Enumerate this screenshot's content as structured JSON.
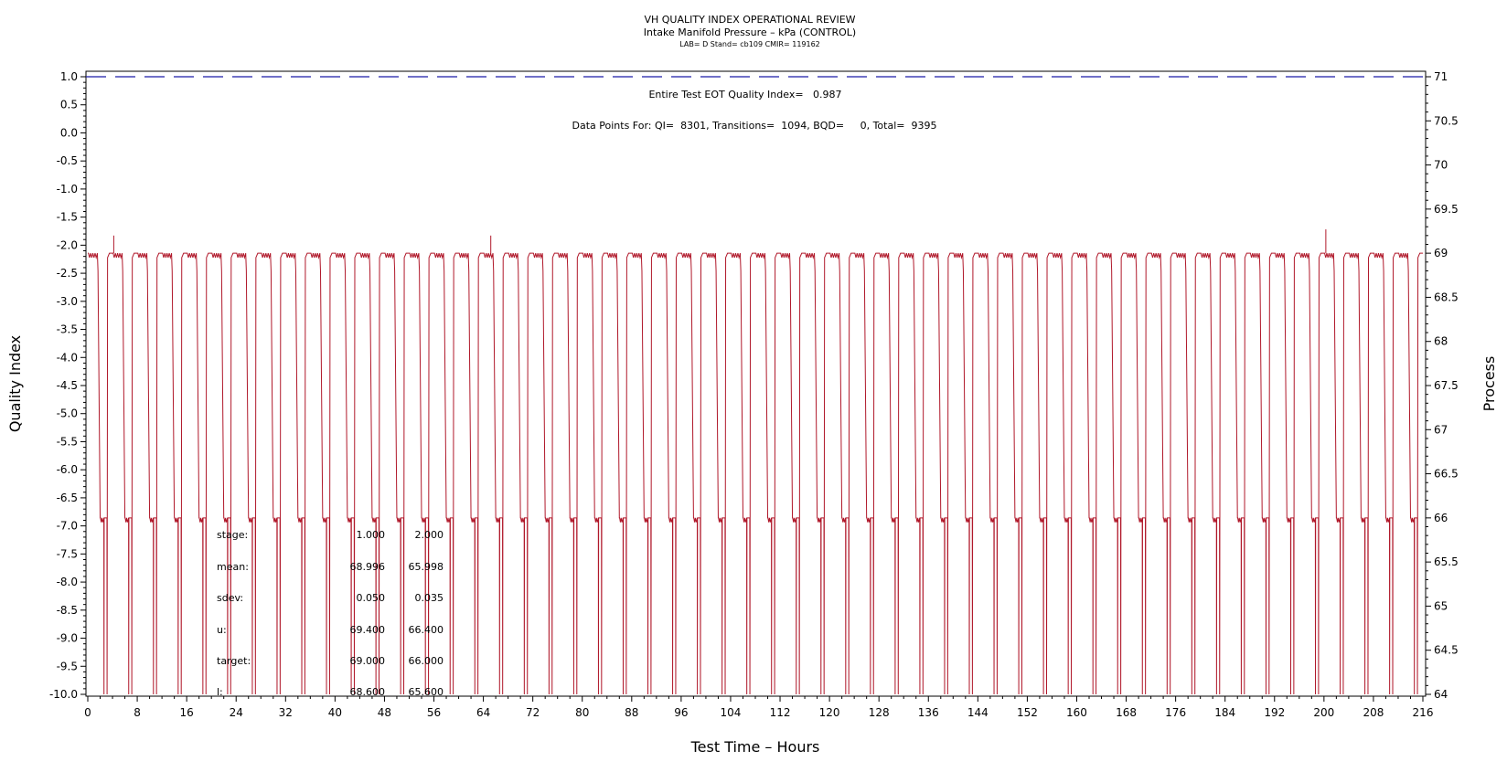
{
  "chart_data": {
    "type": "line",
    "title": "VH QUALITY INDEX OPERATIONAL REVIEW",
    "subtitle": "Intake Manifold Pressure – kPa (CONTROL)",
    "subtitle2": "LAB= D Stand= cb109 CMIR= 119162",
    "xlabel": "Test Time – Hours",
    "ylabel": "Quality Index",
    "y2label": "Process",
    "xlim": [
      0,
      216
    ],
    "ylim": [
      -10.0,
      1.0
    ],
    "y2lim": [
      64,
      71
    ],
    "x_ticks": [
      "0",
      "8",
      "16",
      "24",
      "32",
      "40",
      "48",
      "56",
      "64",
      "72",
      "80",
      "88",
      "96",
      "104",
      "112",
      "120",
      "128",
      "136",
      "144",
      "152",
      "160",
      "168",
      "176",
      "184",
      "192",
      "200",
      "208",
      "216"
    ],
    "y_ticks": [
      "1.0",
      "0.5",
      "0.0",
      "-0.5",
      "-1.0",
      "-1.5",
      "-2.0",
      "-2.5",
      "-3.0",
      "-3.5",
      "-4.0",
      "-4.5",
      "-5.0",
      "-5.5",
      "-6.0",
      "-6.5",
      "-7.0",
      "-7.5",
      "-8.0",
      "-8.5",
      "-9.0",
      "-9.5",
      "-10.0"
    ],
    "y2_ticks": [
      "71",
      "70.5",
      "70",
      "69.5",
      "69",
      "68.5",
      "68",
      "67.5",
      "67",
      "66.5",
      "66",
      "65.5",
      "65",
      "64.5",
      "64"
    ],
    "reference_line": {
      "y": 1.0,
      "style": "dashed",
      "color": "#1a1aa6"
    },
    "series": [
      {
        "color": "#b0182a",
        "cycle_hours": 4,
        "high_level": 69.0,
        "low_level": 66.0,
        "axis_floor": 64.0,
        "high_value_peaks": [
          69.2,
          69.2,
          69.27
        ],
        "cycle_starts": [
          0,
          4,
          8,
          12,
          16,
          20,
          24,
          28,
          32,
          36,
          40,
          44,
          48,
          52,
          56,
          60,
          64,
          68,
          72,
          76,
          80,
          84,
          88,
          92,
          96,
          100,
          104,
          108,
          112,
          116,
          120,
          124,
          128,
          132,
          136,
          140,
          144,
          148,
          152,
          156,
          160,
          164,
          168,
          172,
          176,
          180,
          184,
          188,
          192,
          196,
          200,
          204,
          208,
          212
        ]
      }
    ],
    "annotations": [
      "Entire Test EOT Quality Index=   0.987",
      "Data Points For: QI=  8301, Transitions=  1094, BQD=     0, Total=  9395"
    ],
    "stats_table": {
      "rows": [
        {
          "label": "stage:",
          "v1": "1.000",
          "v2": "2.000"
        },
        {
          "label": "mean:",
          "v1": "68.996",
          "v2": "65.998"
        },
        {
          "label": "sdev:",
          "v1": "0.050",
          "v2": "0.035"
        },
        {
          "label": "u:",
          "v1": "69.400",
          "v2": "66.400"
        },
        {
          "label": "target:",
          "v1": "69.000",
          "v2": "66.000"
        },
        {
          "label": "l:",
          "v1": "68.600",
          "v2": "65.600"
        }
      ]
    },
    "grid": false,
    "legend": "none"
  }
}
